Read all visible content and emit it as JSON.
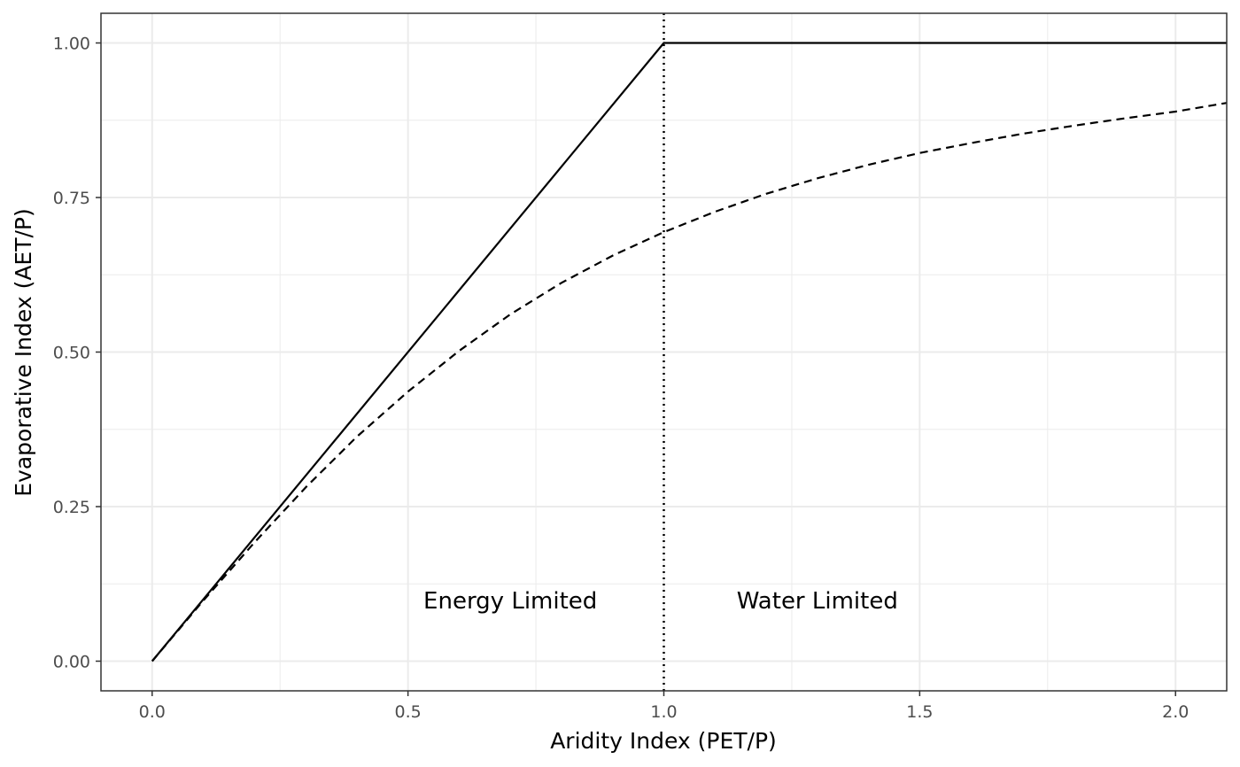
{
  "chart_data": {
    "type": "line",
    "title": "",
    "xlabel": "Aridity Index (PET/P)",
    "ylabel": "Evaporative Index (AET/P)",
    "xlim": [
      -0.1,
      2.1
    ],
    "ylim": [
      -0.048,
      1.048
    ],
    "x_ticks": [
      0.0,
      0.5,
      1.0,
      1.5,
      2.0
    ],
    "x_tick_labels": [
      "0.0",
      "0.5",
      "1.0",
      "1.5",
      "2.0"
    ],
    "y_ticks": [
      0.0,
      0.25,
      0.5,
      0.75,
      1.0
    ],
    "y_tick_labels": [
      "0.00",
      "0.25",
      "0.50",
      "0.75",
      "1.00"
    ],
    "grid": true,
    "series": [
      {
        "style": "solid",
        "x": [
          0.0,
          1.0,
          2.1
        ],
        "y": [
          0.0,
          1.0,
          1.0
        ]
      },
      {
        "style": "dashed",
        "x": [
          0.0,
          0.1,
          0.2,
          0.3,
          0.4,
          0.5,
          0.6,
          0.7,
          0.8,
          0.9,
          1.0,
          1.1,
          1.2,
          1.3,
          1.4,
          1.5,
          1.6,
          1.7,
          1.8,
          1.9,
          2.0,
          2.1
        ],
        "y": [
          0.0,
          0.098,
          0.192,
          0.281,
          0.363,
          0.436,
          0.502,
          0.561,
          0.612,
          0.656,
          0.694,
          0.727,
          0.756,
          0.781,
          0.803,
          0.822,
          0.838,
          0.853,
          0.866,
          0.878,
          0.889,
          0.903
        ]
      }
    ],
    "vlines": [
      {
        "x": 1.0,
        "style": "dotted"
      }
    ],
    "annotations": [
      {
        "text": "Energy Limited",
        "x": 0.7,
        "y": 0.098
      },
      {
        "text": "Water Limited",
        "x": 1.3,
        "y": 0.098
      }
    ]
  }
}
